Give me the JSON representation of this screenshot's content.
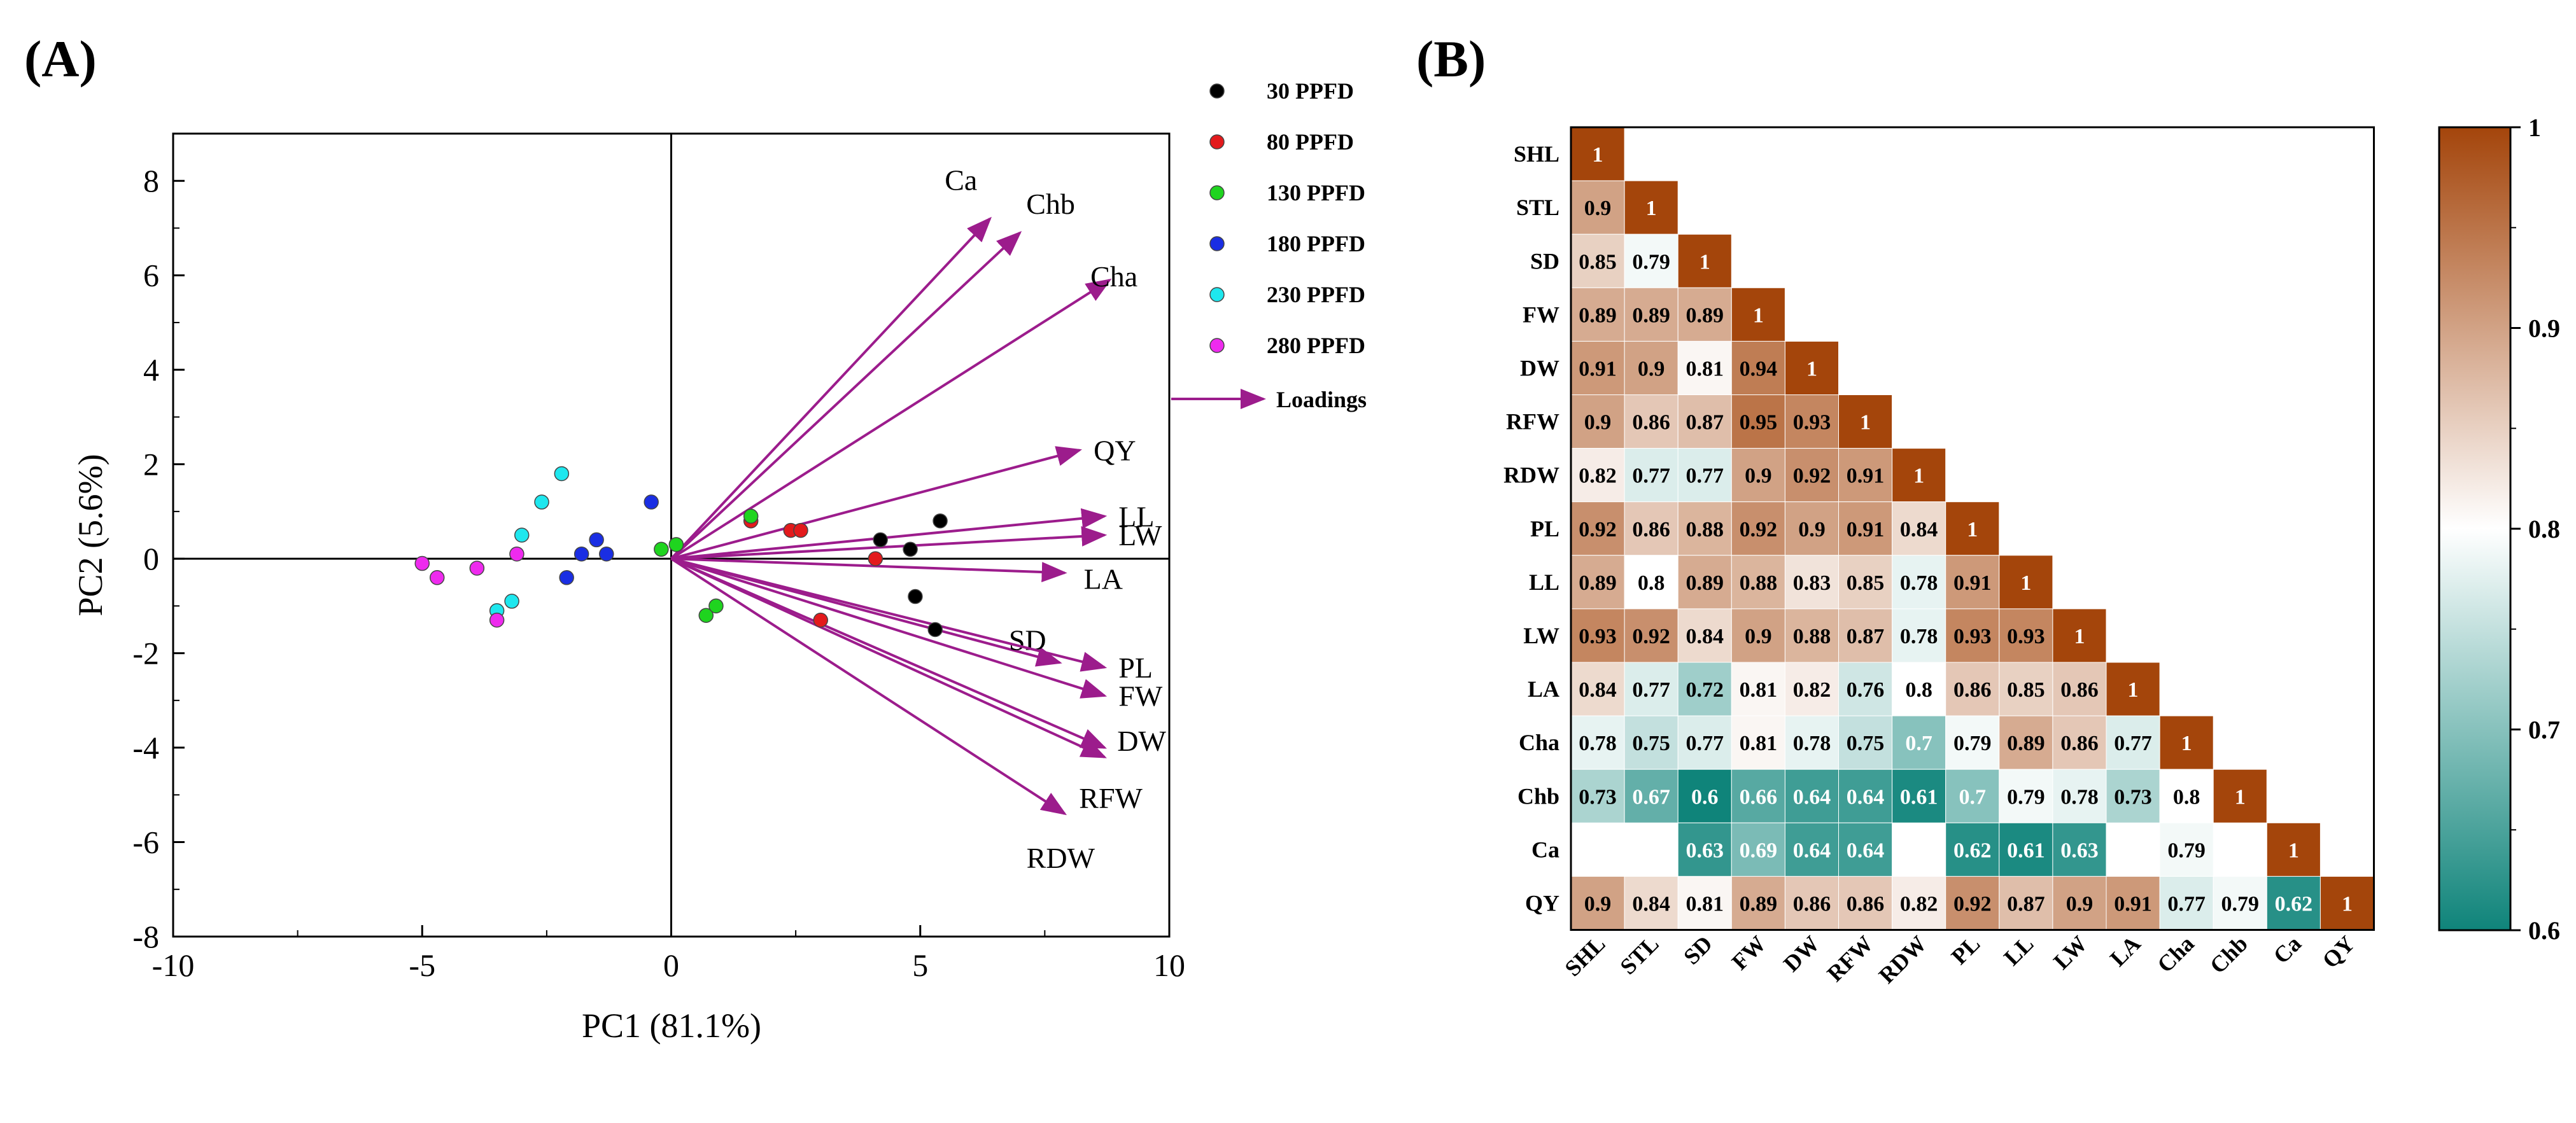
{
  "panels": {
    "a_label": "(A)",
    "b_label": "(B)"
  },
  "colors": {
    "loading": "#9c1c8c",
    "axis": "#000000",
    "cmap_low": "#0f847a",
    "cmap_mid": "#ffffff",
    "cmap_high": "#a4450b"
  },
  "chart_data": [
    {
      "type": "scatter",
      "title": "(A)",
      "xlabel": "PC1 (81.1%)",
      "ylabel": "PC2 (5.6%)",
      "xlim": [
        -10,
        10
      ],
      "ylim": [
        -8,
        9
      ],
      "xticks": [
        -10,
        -5,
        0,
        5,
        10
      ],
      "yticks": [
        -8,
        -6,
        -4,
        -2,
        0,
        2,
        4,
        6,
        8
      ],
      "series": [
        {
          "name": "30 PPFD",
          "color": "#000000",
          "points": [
            [
              4.2,
              0.4
            ],
            [
              4.8,
              0.2
            ],
            [
              5.4,
              0.8
            ],
            [
              4.9,
              -0.8
            ],
            [
              5.3,
              -1.5
            ]
          ]
        },
        {
          "name": "80 PPFD",
          "color": "#e31a1c",
          "points": [
            [
              1.6,
              0.8
            ],
            [
              2.4,
              0.6
            ],
            [
              2.6,
              0.6
            ],
            [
              4.1,
              0.0
            ],
            [
              3.0,
              -1.3
            ]
          ]
        },
        {
          "name": "130 PPFD",
          "color": "#1fd41f",
          "points": [
            [
              -0.2,
              0.2
            ],
            [
              0.1,
              0.3
            ],
            [
              1.6,
              0.9
            ],
            [
              0.7,
              -1.2
            ],
            [
              0.9,
              -1.0
            ]
          ]
        },
        {
          "name": "180 PPFD",
          "color": "#1a2ee3",
          "points": [
            [
              -0.4,
              1.2
            ],
            [
              -1.5,
              0.4
            ],
            [
              -1.8,
              0.1
            ],
            [
              -1.3,
              0.1
            ],
            [
              -2.1,
              -0.4
            ]
          ]
        },
        {
          "name": "230 PPFD",
          "color": "#1ee7ee",
          "points": [
            [
              -2.2,
              1.8
            ],
            [
              -2.6,
              1.2
            ],
            [
              -3.0,
              0.5
            ],
            [
              -3.2,
              -0.9
            ],
            [
              -3.5,
              -1.1
            ]
          ]
        },
        {
          "name": "280 PPFD",
          "color": "#ee2aee",
          "points": [
            [
              -5.0,
              -0.1
            ],
            [
              -4.7,
              -0.4
            ],
            [
              -3.9,
              -0.2
            ],
            [
              -3.1,
              0.1
            ],
            [
              -3.5,
              -1.3
            ]
          ]
        }
      ],
      "loadings_legend": "Loadings",
      "loadings": [
        {
          "name": "Ca",
          "x": 6.4,
          "y": 7.2
        },
        {
          "name": "Chb",
          "x": 7.0,
          "y": 6.9
        },
        {
          "name": "Cha",
          "x": 8.8,
          "y": 5.9
        },
        {
          "name": "QY",
          "x": 8.2,
          "y": 2.3
        },
        {
          "name": "LL",
          "x": 8.7,
          "y": 0.9
        },
        {
          "name": "LW",
          "x": 8.7,
          "y": 0.5
        },
        {
          "name": "LA",
          "x": 7.9,
          "y": -0.3
        },
        {
          "name": "SD",
          "x": 7.8,
          "y": -2.2
        },
        {
          "name": "PL",
          "x": 8.7,
          "y": -2.3
        },
        {
          "name": "FW",
          "x": 8.7,
          "y": -2.9
        },
        {
          "name": "DW",
          "x": 8.7,
          "y": -4.0
        },
        {
          "name": "RFW",
          "x": 8.7,
          "y": -4.2
        },
        {
          "name": "RDW",
          "x": 7.9,
          "y": -5.4
        }
      ]
    },
    {
      "type": "heatmap",
      "title": "(B)",
      "labels": [
        "SHL",
        "STL",
        "SD",
        "FW",
        "DW",
        "RFW",
        "RDW",
        "PL",
        "LL",
        "LW",
        "LA",
        "Cha",
        "Chb",
        "Ca",
        "QY"
      ],
      "matrix": [
        [
          1
        ],
        [
          0.9,
          1
        ],
        [
          0.85,
          0.79,
          1
        ],
        [
          0.89,
          0.89,
          0.89,
          1
        ],
        [
          0.91,
          0.9,
          0.81,
          0.94,
          1
        ],
        [
          0.9,
          0.86,
          0.87,
          0.95,
          0.93,
          1
        ],
        [
          0.82,
          0.77,
          0.77,
          0.9,
          0.92,
          0.91,
          1
        ],
        [
          0.92,
          0.86,
          0.88,
          0.92,
          0.9,
          0.91,
          0.84,
          1
        ],
        [
          0.89,
          0.8,
          0.89,
          0.88,
          0.83,
          0.85,
          0.78,
          0.91,
          1
        ],
        [
          0.93,
          0.92,
          0.84,
          0.9,
          0.88,
          0.87,
          0.78,
          0.93,
          0.93,
          1
        ],
        [
          0.84,
          0.77,
          0.72,
          0.81,
          0.82,
          0.76,
          0.8,
          0.86,
          0.85,
          0.86,
          1
        ],
        [
          0.78,
          0.75,
          0.77,
          0.81,
          0.78,
          0.75,
          0.7,
          0.79,
          0.89,
          0.86,
          0.77,
          1
        ],
        [
          0.73,
          0.67,
          0.6,
          0.66,
          0.64,
          0.64,
          0.61,
          0.7,
          0.79,
          0.78,
          0.73,
          0.8,
          1
        ],
        [
          null,
          null,
          0.63,
          0.69,
          0.64,
          0.64,
          null,
          0.62,
          0.61,
          0.63,
          null,
          0.79,
          null,
          1
        ],
        [
          0.9,
          0.84,
          0.81,
          0.89,
          0.86,
          0.86,
          0.82,
          0.92,
          0.87,
          0.9,
          0.91,
          0.77,
          0.79,
          0.62,
          1
        ]
      ],
      "colorbar": {
        "min": 0.6,
        "max": 1,
        "ticks": [
          0.6,
          0.7,
          0.8,
          0.9,
          1
        ]
      }
    }
  ]
}
